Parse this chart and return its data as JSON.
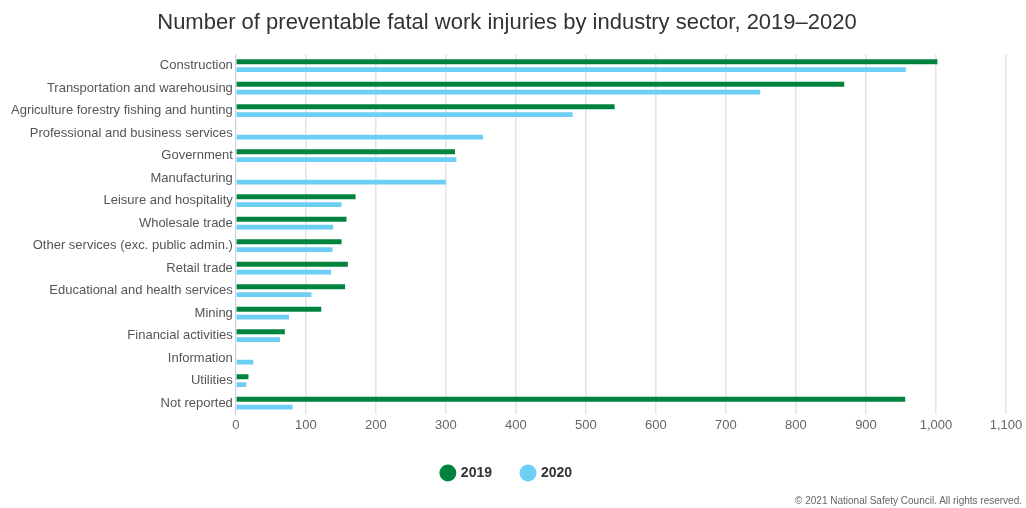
{
  "chart_data": {
    "type": "bar",
    "orientation": "horizontal",
    "title": "Number of preventable fatal work injuries by industry sector, 2019–2020",
    "categories": [
      "Construction",
      "Transportation and warehousing",
      "Agriculture forestry fishing and hunting",
      "Professional and business services",
      "Government",
      "Manufacturing",
      "Leisure and hospitality",
      "Wholesale trade",
      "Other services (exc. public admin.)",
      "Retail trade",
      "Educational and health services",
      "Mining",
      "Financial activities",
      "Information",
      "Utilities",
      "Not reported"
    ],
    "series": [
      {
        "name": "2019",
        "color": "#00843d",
        "values": [
          1002,
          869,
          541,
          null,
          313,
          null,
          171,
          158,
          151,
          160,
          156,
          122,
          70,
          null,
          18,
          956
        ]
      },
      {
        "name": "2020",
        "color": "#6dcff6",
        "values": [
          957,
          749,
          481,
          353,
          315,
          300,
          151,
          139,
          138,
          136,
          108,
          76,
          63,
          25,
          15,
          81
        ]
      }
    ],
    "xlim": [
      0,
      1100
    ],
    "xticks": [
      0,
      100,
      200,
      300,
      400,
      500,
      600,
      700,
      800,
      900,
      {
        "value": 1000,
        "label": "1,000"
      },
      {
        "value": 1100,
        "label": "1,100"
      }
    ],
    "grid": "x",
    "legend": "bottom",
    "annotations": [
      "© 2021 National Safety Council. All rights reserved."
    ]
  }
}
